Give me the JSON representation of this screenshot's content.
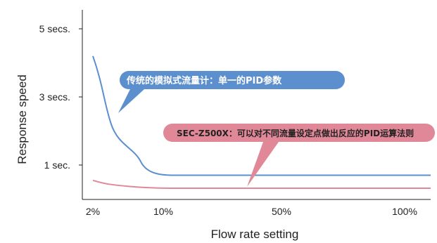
{
  "chart_data": {
    "type": "line",
    "xlabel": "Flow rate setting",
    "ylabel": "Response speed",
    "x_ticks": [
      "2%",
      "10%",
      "50%",
      "100%"
    ],
    "y_ticks": [
      {
        "value": 1,
        "label": "1 sec."
      },
      {
        "value": 3,
        "label": "3 secs."
      },
      {
        "value": 5,
        "label": "5 secs."
      }
    ],
    "ylim": [
      0,
      6
    ],
    "grid": false,
    "series": [
      {
        "color": "#5b8fce",
        "points": [
          {
            "x": "2%",
            "y": 4.2
          },
          {
            "x": "5%",
            "y": 2.2
          },
          {
            "x": "8%",
            "y": 1.1
          },
          {
            "x": "12%",
            "y": 0.7
          },
          {
            "x": "100%",
            "y": 0.7
          }
        ]
      },
      {
        "color": "#e08898",
        "points": [
          {
            "x": "2%",
            "y": 0.55
          },
          {
            "x": "6%",
            "y": 0.38
          },
          {
            "x": "12%",
            "y": 0.32
          },
          {
            "x": "100%",
            "y": 0.32
          }
        ]
      }
    ],
    "annotations": [
      {
        "text": "传统的模拟式流量计：单一的PID参数",
        "color": "#5b8fce",
        "text_color": "#ffffff"
      },
      {
        "text": "SEC-Z500X：可以对不同流量设定点做出反应的PID运算法则",
        "color": "#e08898",
        "text_color": "#222222"
      }
    ]
  }
}
